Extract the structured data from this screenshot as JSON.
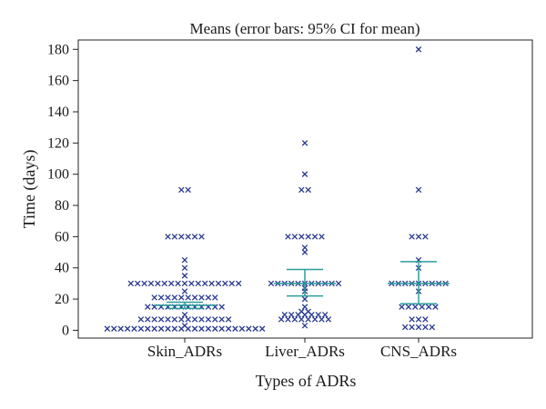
{
  "chart_data": {
    "type": "scatter",
    "title": "Means (error bars: 95% CI for mean)",
    "xlabel": "Types of ADRs",
    "ylabel": "Time (days)",
    "categories": [
      "Skin_ADRs",
      "Liver_ADRs",
      "CNS_ADRs"
    ],
    "ylim": [
      -5,
      186
    ],
    "yticks": [
      0,
      20,
      40,
      60,
      80,
      100,
      120,
      140,
      160,
      180
    ],
    "grid": false,
    "colors": {
      "points": "#2b3a8f",
      "ci": "#2a9d9a"
    },
    "groups": [
      {
        "category": "Skin_ADRs",
        "points": [
          {
            "y": 90,
            "n": 2
          },
          {
            "y": 60,
            "n": 6
          },
          {
            "y": 45,
            "n": 1
          },
          {
            "y": 40,
            "n": 1
          },
          {
            "y": 35,
            "n": 1
          },
          {
            "y": 30,
            "n": 17
          },
          {
            "y": 25,
            "n": 1
          },
          {
            "y": 21,
            "n": 10
          },
          {
            "y": 15,
            "n": 12
          },
          {
            "y": 10,
            "n": 1
          },
          {
            "y": 7,
            "n": 14
          },
          {
            "y": 3,
            "n": 1
          },
          {
            "y": 1,
            "n": 24
          }
        ],
        "mean": 16,
        "ci": [
          14,
          18
        ]
      },
      {
        "category": "Liver_ADRs",
        "points": [
          {
            "y": 120,
            "n": 1
          },
          {
            "y": 100,
            "n": 1
          },
          {
            "y": 90,
            "n": 2
          },
          {
            "y": 60,
            "n": 6
          },
          {
            "y": 53,
            "n": 1
          },
          {
            "y": 50,
            "n": 1
          },
          {
            "y": 30,
            "n": 11
          },
          {
            "y": 27,
            "n": 1
          },
          {
            "y": 25,
            "n": 1
          },
          {
            "y": 20,
            "n": 1
          },
          {
            "y": 15,
            "n": 1
          },
          {
            "y": 12,
            "n": 2
          },
          {
            "y": 10,
            "n": 7
          },
          {
            "y": 7,
            "n": 8
          },
          {
            "y": 3,
            "n": 1
          }
        ],
        "mean": 30,
        "ci": [
          22,
          39
        ]
      },
      {
        "category": "CNS_ADRs",
        "points": [
          {
            "y": 180,
            "n": 1
          },
          {
            "y": 90,
            "n": 1
          },
          {
            "y": 60,
            "n": 3
          },
          {
            "y": 45,
            "n": 1
          },
          {
            "y": 40,
            "n": 1
          },
          {
            "y": 30,
            "n": 9
          },
          {
            "y": 25,
            "n": 1
          },
          {
            "y": 15,
            "n": 6
          },
          {
            "y": 7,
            "n": 3
          },
          {
            "y": 2,
            "n": 5
          }
        ],
        "mean": 30,
        "ci": [
          17,
          44
        ]
      }
    ]
  }
}
